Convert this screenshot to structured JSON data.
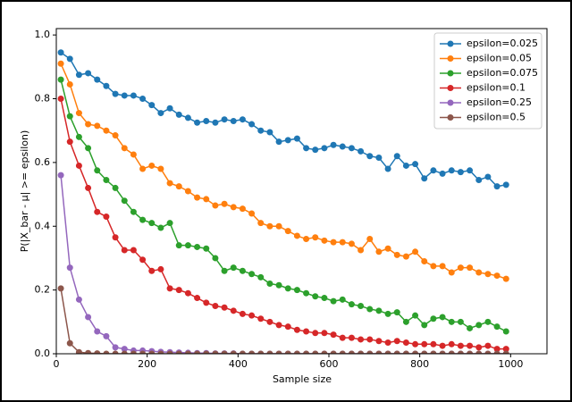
{
  "chart_data": {
    "type": "line",
    "xlabel": "Sample size",
    "ylabel": "P(|X_bar - μ| >= epsilon)",
    "x": [
      10,
      30,
      50,
      70,
      90,
      110,
      130,
      150,
      170,
      190,
      210,
      230,
      250,
      270,
      290,
      310,
      330,
      350,
      370,
      390,
      410,
      430,
      450,
      470,
      490,
      510,
      530,
      550,
      570,
      590,
      610,
      630,
      650,
      670,
      690,
      710,
      730,
      750,
      770,
      790,
      810,
      830,
      850,
      870,
      890,
      910,
      930,
      950,
      970,
      990
    ],
    "xlim": [
      0,
      1080
    ],
    "ylim": [
      0,
      1.02
    ],
    "xticks": [
      0,
      200,
      400,
      600,
      800,
      1000
    ],
    "yticks": [
      {
        "value": 0,
        "label": "0.0"
      },
      0.2,
      0.4,
      0.6,
      0.8,
      {
        "value": 1,
        "label": "1.0"
      }
    ],
    "legend": "upper right",
    "grid": false,
    "series": [
      {
        "name": "epsilon=0.025",
        "color": "#1f77b4",
        "values": [
          0.945,
          0.925,
          0.875,
          0.88,
          0.86,
          0.84,
          0.815,
          0.81,
          0.81,
          0.8,
          0.78,
          0.755,
          0.77,
          0.75,
          0.74,
          0.725,
          0.73,
          0.725,
          0.735,
          0.73,
          0.735,
          0.72,
          0.7,
          0.695,
          0.665,
          0.67,
          0.675,
          0.645,
          0.64,
          0.645,
          0.655,
          0.65,
          0.645,
          0.635,
          0.62,
          0.615,
          0.58,
          0.62,
          0.59,
          0.595,
          0.55,
          0.575,
          0.565,
          0.575,
          0.57,
          0.575,
          0.545,
          0.555,
          0.525,
          0.53
        ]
      },
      {
        "name": "epsilon=0.05",
        "color": "#ff7f0e",
        "values": [
          0.91,
          0.845,
          0.755,
          0.72,
          0.715,
          0.7,
          0.685,
          0.645,
          0.625,
          0.58,
          0.59,
          0.58,
          0.535,
          0.525,
          0.51,
          0.49,
          0.485,
          0.465,
          0.47,
          0.46,
          0.455,
          0.44,
          0.41,
          0.4,
          0.4,
          0.385,
          0.37,
          0.36,
          0.365,
          0.355,
          0.35,
          0.35,
          0.345,
          0.325,
          0.36,
          0.32,
          0.33,
          0.31,
          0.305,
          0.32,
          0.29,
          0.275,
          0.275,
          0.255,
          0.27,
          0.27,
          0.255,
          0.25,
          0.245,
          0.235
        ]
      },
      {
        "name": "epsilon=0.075",
        "color": "#2ca02c",
        "values": [
          0.86,
          0.745,
          0.68,
          0.645,
          0.575,
          0.545,
          0.52,
          0.48,
          0.445,
          0.42,
          0.41,
          0.395,
          0.41,
          0.34,
          0.34,
          0.335,
          0.33,
          0.3,
          0.26,
          0.27,
          0.26,
          0.25,
          0.24,
          0.22,
          0.215,
          0.205,
          0.2,
          0.19,
          0.18,
          0.175,
          0.165,
          0.17,
          0.155,
          0.15,
          0.14,
          0.135,
          0.125,
          0.13,
          0.1,
          0.12,
          0.09,
          0.11,
          0.115,
          0.1,
          0.1,
          0.08,
          0.09,
          0.1,
          0.085,
          0.07
        ]
      },
      {
        "name": "epsilon=0.1",
        "color": "#d62728",
        "values": [
          0.8,
          0.665,
          0.59,
          0.52,
          0.445,
          0.43,
          0.365,
          0.325,
          0.325,
          0.295,
          0.26,
          0.265,
          0.205,
          0.2,
          0.19,
          0.175,
          0.16,
          0.15,
          0.145,
          0.135,
          0.125,
          0.12,
          0.11,
          0.1,
          0.09,
          0.085,
          0.075,
          0.07,
          0.065,
          0.065,
          0.06,
          0.05,
          0.05,
          0.045,
          0.045,
          0.04,
          0.035,
          0.04,
          0.035,
          0.03,
          0.03,
          0.03,
          0.025,
          0.03,
          0.025,
          0.025,
          0.02,
          0.025,
          0.015,
          0.015
        ]
      },
      {
        "name": "epsilon=0.25",
        "color": "#9467bd",
        "values": [
          0.56,
          0.27,
          0.17,
          0.115,
          0.07,
          0.055,
          0.02,
          0.015,
          0.01,
          0.01,
          0.008,
          0.006,
          0.005,
          0.004,
          0.003,
          0.002,
          0.002,
          0.001,
          0.001,
          0.001,
          0,
          0,
          0,
          0,
          0,
          0,
          0,
          0,
          0,
          0,
          0,
          0,
          0,
          0,
          0,
          0,
          0,
          0,
          0,
          0,
          0,
          0,
          0,
          0,
          0,
          0,
          0,
          0,
          0,
          0
        ]
      },
      {
        "name": "epsilon=0.5",
        "color": "#8c564b",
        "values": [
          0.205,
          0.033,
          0.005,
          0.002,
          0.001,
          0,
          0,
          0,
          0,
          0,
          0,
          0,
          0,
          0,
          0,
          0,
          0,
          0,
          0,
          0,
          0,
          0,
          0,
          0,
          0,
          0,
          0,
          0,
          0,
          0,
          0,
          0,
          0,
          0,
          0,
          0,
          0,
          0,
          0,
          0,
          0,
          0,
          0,
          0,
          0,
          0,
          0,
          0,
          0,
          0
        ]
      }
    ]
  }
}
